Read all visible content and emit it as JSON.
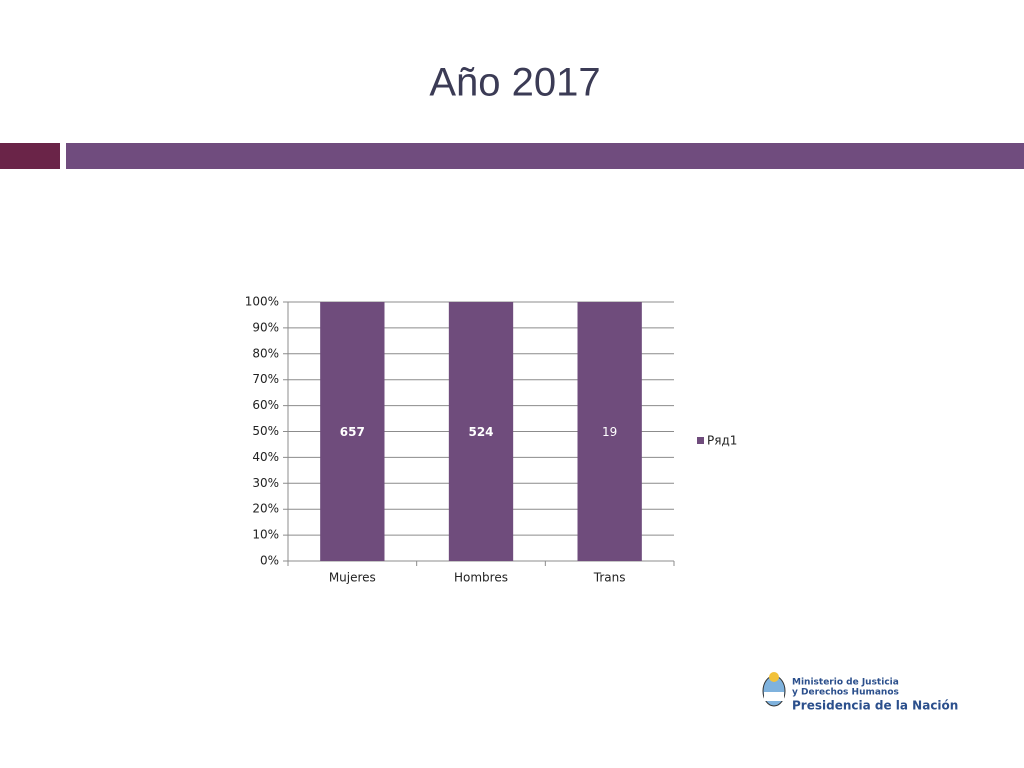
{
  "chart_data": {
    "type": "bar",
    "stacking": "percent",
    "title": "Año 2017",
    "categories": [
      "Mujeres",
      "Hombres",
      "Trans"
    ],
    "series": [
      {
        "name": "Ряд1",
        "color": "#6f4c7c",
        "values": [
          657,
          524,
          19
        ]
      }
    ],
    "ylim": [
      0,
      100
    ],
    "yticks": [
      {
        "value": 0,
        "label": "0%"
      },
      {
        "value": 10,
        "label": "10%"
      },
      {
        "value": 20,
        "label": "20%"
      },
      {
        "value": 30,
        "label": "30%"
      },
      {
        "value": 40,
        "label": "40%"
      },
      {
        "value": 50,
        "label": "50%"
      },
      {
        "value": 60,
        "label": "60%"
      },
      {
        "value": 70,
        "label": "70%"
      },
      {
        "value": 80,
        "label": "80%"
      },
      {
        "value": 90,
        "label": "90%"
      },
      {
        "value": 100,
        "label": "100%"
      }
    ],
    "grid": true,
    "legend": "right"
  },
  "logo": {
    "line1": "Ministerio de Justicia",
    "line2": "y Derechos Humanos",
    "line3": "Presidencia de la Nación"
  }
}
